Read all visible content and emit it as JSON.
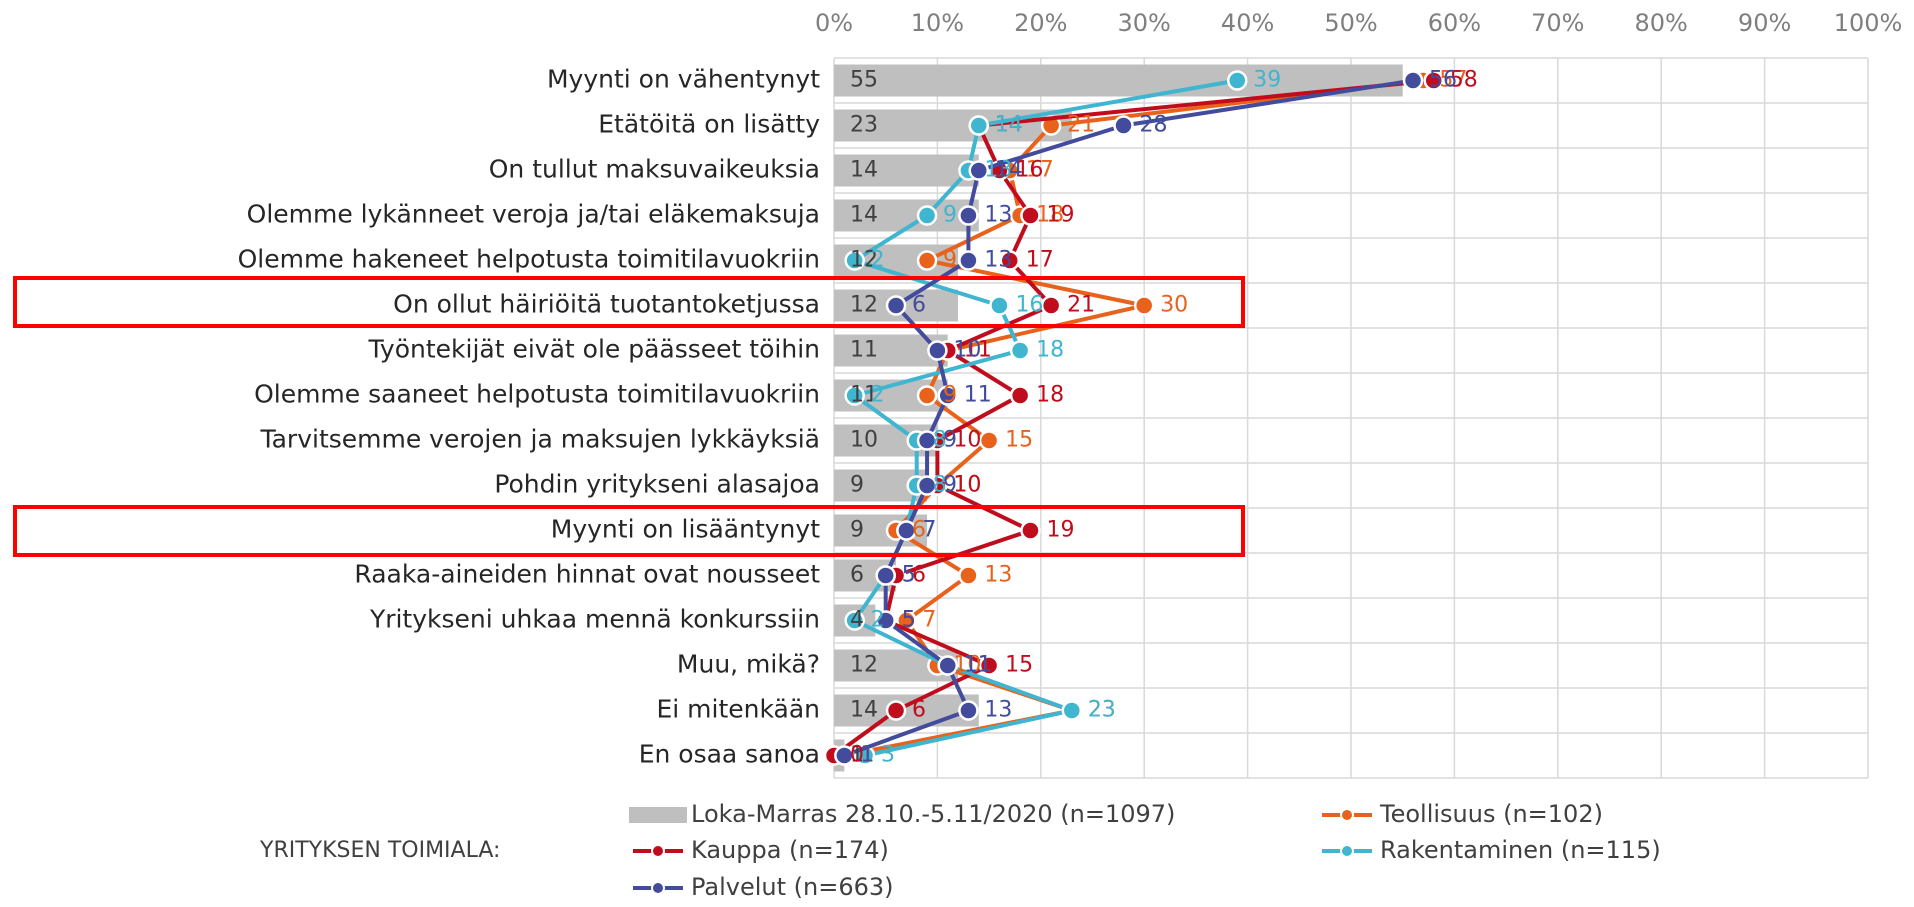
{
  "chart_data": {
    "type": "bar",
    "orientation": "horizontal",
    "categories": [
      "Myynti on vähentynyt",
      "Etätöitä on lisätty",
      "On tullut maksuvaikeuksia",
      "Olemme lykänneet veroja ja/tai eläkemaksuja",
      "Olemme hakeneet helpotusta toimitilavuokriin",
      "On ollut häiriöitä tuotantoketjussa",
      "Työntekijät eivät ole päässeet töihin",
      "Olemme saaneet helpotusta toimitilavuokriin",
      "Tarvitsemme verojen ja maksujen lykkäyksiä",
      "Pohdin yritykseni alasajoa",
      "Myynti on lisääntynyt",
      "Raaka-aineiden hinnat ovat nousseet",
      "Yritykseni uhkaa mennä konkurssiin",
      "Muu, mikä?",
      "Ei mitenkään",
      "En osaa sanoa"
    ],
    "series": [
      {
        "name": "Loka-Marras 28.10.-5.11/2020 (n=1097)",
        "type": "bar",
        "color": "#bfbfbf",
        "values": [
          55,
          23,
          14,
          14,
          12,
          12,
          11,
          11,
          10,
          9,
          9,
          6,
          4,
          12,
          14,
          1
        ]
      },
      {
        "name": "Teollisuus (n=102)",
        "type": "line",
        "color": "#e8621c",
        "values": [
          57,
          21,
          17,
          18,
          9,
          30,
          11,
          9,
          15,
          10,
          6,
          13,
          7,
          10,
          23,
          1
        ]
      },
      {
        "name": "Kauppa (n=174)",
        "type": "line",
        "color": "#c00d1e",
        "values": [
          58,
          14,
          16,
          19,
          17,
          21,
          11,
          18,
          10,
          10,
          19,
          6,
          5,
          15,
          6,
          0
        ]
      },
      {
        "name": "Rakentaminen (n=115)",
        "type": "line",
        "color": "#3fb5cf",
        "values": [
          39,
          14,
          13,
          9,
          2,
          16,
          18,
          2,
          8,
          8,
          7,
          5,
          2,
          11,
          23,
          3
        ]
      },
      {
        "name": "Palvelut (n=663)",
        "type": "line",
        "color": "#434c9c",
        "values": [
          56,
          28,
          14,
          13,
          13,
          6,
          10,
          11,
          9,
          9,
          7,
          5,
          5,
          11,
          13,
          1
        ]
      }
    ],
    "legend_title": "YRITYKSEN TOIMIALA:",
    "xlim": [
      0,
      100
    ],
    "xticks": [
      {
        "value": 0,
        "label": "0%"
      },
      {
        "value": 10,
        "label": "10%"
      },
      {
        "value": 20,
        "label": "20%"
      },
      {
        "value": 30,
        "label": "30%"
      },
      {
        "value": 40,
        "label": "40%"
      },
      {
        "value": 50,
        "label": "50%"
      },
      {
        "value": 60,
        "label": "60%"
      },
      {
        "value": 70,
        "label": "70%"
      },
      {
        "value": 80,
        "label": "80%"
      },
      {
        "value": 90,
        "label": "90%"
      },
      {
        "value": 100,
        "label": "100%"
      }
    ],
    "grid": true
  }
}
